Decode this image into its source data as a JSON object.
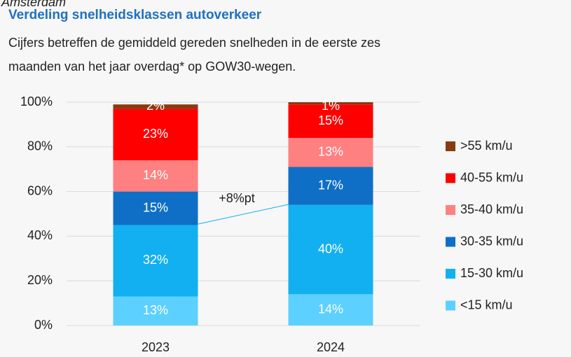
{
  "chart_data": {
    "type": "stacked_bar",
    "supertitle": "Amsterdam",
    "title": "Verdeling snelheidsklassen autoverkeer",
    "subtitle": [
      "Cijfers betreffen de gemiddeld gereden snelheden in de eerste zes",
      "maanden van het jaar overdag* op GOW30-wegen."
    ],
    "categories": [
      "2023",
      "2024"
    ],
    "series": [
      {
        "name": "<15 km/u",
        "color": "#5cd0ff",
        "values": [
          13,
          14
        ],
        "value_labels": [
          "13%",
          "14%"
        ]
      },
      {
        "name": "15-30 km/u",
        "color": "#12b0f0",
        "values": [
          32,
          40
        ],
        "value_labels": [
          "32%",
          "40%"
        ]
      },
      {
        "name": "30-35 km/u",
        "color": "#0f6fc6",
        "values": [
          15,
          17
        ],
        "value_labels": [
          "15%",
          "17%"
        ]
      },
      {
        "name": "35-40 km/u",
        "color": "#ff8080",
        "values": [
          14,
          13
        ],
        "value_labels": [
          "14%",
          "13%"
        ]
      },
      {
        "name": "40-55 km/u",
        "color": "#ff0000",
        "values": [
          23,
          15
        ],
        "value_labels": [
          "23%",
          "15%"
        ]
      },
      {
        "name": ">55 km/u",
        "color": "#8a3a10",
        "values": [
          2,
          1
        ],
        "value_labels": [
          "2%",
          "1%"
        ]
      }
    ],
    "annotation": "+8%pt",
    "ylim": [
      0,
      100
    ],
    "yticks": [
      {
        "value": 0,
        "label": "0%"
      },
      {
        "value": 20,
        "label": "20%"
      },
      {
        "value": 40,
        "label": "40%"
      },
      {
        "value": 60,
        "label": "60%"
      },
      {
        "value": 80,
        "label": "80%"
      },
      {
        "value": 100,
        "label": "100%"
      }
    ],
    "grid": true,
    "legend": "right"
  }
}
